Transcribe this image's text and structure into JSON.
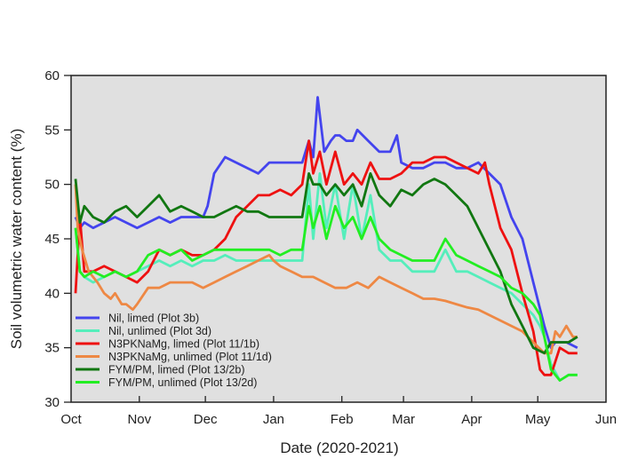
{
  "chart_data": {
    "type": "line",
    "title": "",
    "xlabel": "Date (2020-2021)",
    "ylabel": "Soil volumetric water content (%)",
    "ylim": [
      30,
      60
    ],
    "yticks": [
      30,
      35,
      40,
      45,
      50,
      55,
      60
    ],
    "xlim_days": [
      0,
      243
    ],
    "xticks": [
      {
        "label": "Oct",
        "day": 0
      },
      {
        "label": "Nov",
        "day": 31
      },
      {
        "label": "Dec",
        "day": 61
      },
      {
        "label": "Jan",
        "day": 92
      },
      {
        "label": "Feb",
        "day": 123
      },
      {
        "label": "Mar",
        "day": 151
      },
      {
        "label": "Apr",
        "day": 182
      },
      {
        "label": "May",
        "day": 212
      },
      {
        "label": "Jun",
        "day": 243
      }
    ],
    "plot_background": "#e0e0e0",
    "legend_position": "bottom-left",
    "series": [
      {
        "name": "Nil, limed (Plot 3b)",
        "color": "#4444ee",
        "x": [
          2,
          4,
          6,
          10,
          15,
          20,
          25,
          30,
          35,
          40,
          45,
          50,
          55,
          60,
          62,
          65,
          70,
          75,
          80,
          85,
          90,
          95,
          100,
          105,
          108,
          110,
          112,
          115,
          118,
          120,
          122,
          125,
          128,
          130,
          135,
          140,
          145,
          148,
          150,
          155,
          160,
          165,
          170,
          175,
          180,
          185,
          190,
          195,
          200,
          205,
          210,
          215,
          218,
          220,
          225,
          230
        ],
        "y": [
          47,
          46,
          46.5,
          46,
          46.5,
          47,
          46.5,
          46,
          46.5,
          47,
          46.5,
          47,
          47,
          47,
          48,
          51,
          52.5,
          52,
          51.5,
          51,
          52,
          52,
          52,
          52,
          54,
          52.5,
          58,
          53,
          54,
          54.5,
          54.5,
          54,
          54,
          55,
          54,
          53,
          53,
          54.5,
          52,
          51.5,
          51.5,
          52,
          52,
          51.5,
          51.5,
          52,
          51,
          50,
          47,
          45,
          41,
          37,
          35,
          35.5,
          35.5,
          35
        ]
      },
      {
        "name": "Nil, unlimed (Plot 3d)",
        "color": "#55eebb",
        "x": [
          2,
          4,
          6,
          10,
          15,
          20,
          25,
          30,
          35,
          40,
          45,
          50,
          55,
          60,
          65,
          70,
          75,
          80,
          85,
          90,
          95,
          100,
          105,
          108,
          110,
          113,
          116,
          120,
          124,
          128,
          132,
          136,
          140,
          145,
          150,
          155,
          160,
          165,
          170,
          175,
          180,
          185,
          190,
          195,
          200,
          205,
          210,
          213,
          215,
          218,
          222,
          226,
          230
        ],
        "y": [
          46,
          42,
          41.5,
          41,
          41.5,
          42,
          41.5,
          42,
          42.5,
          43,
          42.5,
          43,
          42.5,
          43,
          43,
          43.5,
          43,
          43,
          43,
          43,
          43,
          43,
          43,
          50,
          45,
          51,
          46,
          50,
          45,
          50,
          45,
          49,
          44,
          43,
          43,
          42,
          42,
          42,
          44,
          42,
          42,
          41.5,
          41,
          40.5,
          40,
          39,
          38,
          37,
          36,
          33.5,
          32,
          32.5,
          32.5
        ]
      },
      {
        "name": "N3PKNaMg, limed (Plot 11/1b)",
        "color": "#ee1111",
        "x": [
          2,
          4,
          6,
          10,
          15,
          20,
          25,
          30,
          35,
          40,
          45,
          50,
          55,
          60,
          65,
          70,
          75,
          80,
          85,
          90,
          95,
          100,
          105,
          108,
          110,
          113,
          116,
          120,
          124,
          128,
          132,
          136,
          140,
          145,
          150,
          155,
          160,
          165,
          170,
          175,
          180,
          185,
          188,
          190,
          195,
          200,
          205,
          210,
          213,
          215,
          218,
          222,
          226,
          230
        ],
        "y": [
          40,
          47,
          42,
          42,
          42.5,
          42,
          41.5,
          41,
          42,
          44,
          43.5,
          44,
          43.5,
          43.5,
          44,
          45,
          47,
          48,
          49,
          49,
          49.5,
          49,
          50,
          54,
          51,
          53,
          50,
          53,
          50,
          51,
          50,
          52,
          50.5,
          50.5,
          51,
          52,
          52,
          52.5,
          52.5,
          52,
          51.5,
          51,
          52,
          50,
          46,
          44,
          40,
          36.5,
          33,
          32.5,
          32.5,
          35,
          34.5,
          34.5
        ]
      },
      {
        "name": "N3PKNaMg, unlimed (Plot 11/1d)",
        "color": "#ee8844",
        "x": [
          2,
          3,
          5,
          8,
          12,
          15,
          18,
          20,
          23,
          25,
          28,
          30,
          35,
          40,
          45,
          50,
          55,
          60,
          65,
          70,
          75,
          80,
          85,
          90,
          92,
          95,
          100,
          105,
          110,
          115,
          120,
          125,
          130,
          135,
          140,
          145,
          150,
          155,
          160,
          165,
          170,
          175,
          180,
          185,
          190,
          195,
          200,
          205,
          210,
          215,
          218,
          220,
          222,
          225,
          228,
          230
        ],
        "y": [
          50,
          46,
          44,
          42,
          41,
          40,
          39.5,
          40,
          39,
          39,
          38.5,
          39,
          40.5,
          40.5,
          41,
          41,
          41,
          40.5,
          41,
          41.5,
          42,
          42.5,
          43,
          43.5,
          43,
          42.5,
          42,
          41.5,
          41.5,
          41,
          40.5,
          40.5,
          41,
          40.5,
          41.5,
          41,
          40.5,
          40,
          39.5,
          39.5,
          39.3,
          39,
          38.7,
          38.5,
          38,
          37.5,
          37,
          36.5,
          35.5,
          34.5,
          34.5,
          36.5,
          36,
          37,
          36,
          36
        ]
      },
      {
        "name": "FYM/PM, limed (Plot 13/2b)",
        "color": "#117711",
        "x": [
          2,
          4,
          6,
          10,
          15,
          20,
          25,
          30,
          35,
          40,
          45,
          50,
          55,
          60,
          65,
          70,
          75,
          80,
          85,
          90,
          95,
          100,
          105,
          108,
          110,
          113,
          116,
          120,
          124,
          128,
          132,
          136,
          140,
          145,
          150,
          155,
          160,
          165,
          170,
          175,
          180,
          185,
          190,
          195,
          200,
          205,
          210,
          215,
          218,
          222,
          226,
          230
        ],
        "y": [
          50.5,
          46.5,
          48,
          47,
          46.5,
          47.5,
          48,
          47,
          48,
          49,
          47.5,
          48,
          47.5,
          47,
          47,
          47.5,
          48,
          47.5,
          47.5,
          47,
          47,
          47,
          47,
          51,
          50,
          50,
          49,
          50,
          49,
          50,
          48,
          51,
          49,
          48,
          49.5,
          49,
          50,
          50.5,
          50,
          49,
          48,
          46,
          44,
          42,
          39,
          37,
          35,
          34.5,
          35.5,
          35.5,
          35.5,
          36
        ]
      },
      {
        "name": "FYM/PM, unlimed (Plot 13/2d)",
        "color": "#22ee22",
        "x": [
          2,
          4,
          6,
          10,
          15,
          20,
          25,
          30,
          35,
          40,
          45,
          50,
          55,
          60,
          65,
          70,
          75,
          80,
          85,
          90,
          95,
          100,
          105,
          108,
          110,
          113,
          116,
          120,
          124,
          128,
          132,
          136,
          140,
          145,
          150,
          155,
          160,
          165,
          170,
          175,
          180,
          185,
          190,
          195,
          200,
          205,
          210,
          213,
          215,
          218,
          222,
          226,
          230
        ],
        "y": [
          46,
          42,
          41.5,
          42,
          41.5,
          42,
          41.5,
          42,
          43.5,
          44,
          43.5,
          44,
          43,
          43.5,
          44,
          44,
          44,
          44,
          44,
          44,
          43.5,
          44,
          44,
          48,
          46,
          48,
          45,
          48,
          46,
          47,
          45,
          47,
          45,
          44,
          43.5,
          43,
          43,
          43,
          45,
          43.5,
          43,
          42.5,
          42,
          41.5,
          40.5,
          40,
          39,
          38,
          36,
          33,
          32,
          32.5,
          32.5
        ]
      }
    ]
  }
}
